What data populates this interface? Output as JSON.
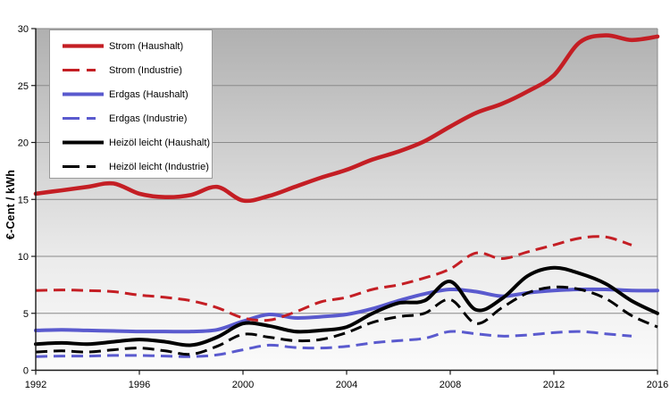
{
  "chart_data": {
    "type": "line",
    "title": "",
    "xlabel": "",
    "ylabel": "€-Cent / kWh",
    "xlim": [
      1992,
      2016
    ],
    "ylim": [
      0,
      30
    ],
    "xticks": [
      1992,
      1996,
      2000,
      2004,
      2008,
      2012,
      2016
    ],
    "yticks": [
      0,
      5,
      10,
      15,
      20,
      25,
      30
    ],
    "grid": "horizontal",
    "legend_position": "upper-left",
    "gridline_color": "#8a8a8a",
    "axis_color": "#1a1a1a",
    "background_gradient": [
      "#b0b0b0",
      "#cdcdcd",
      "#ebebeb",
      "#fbfbfb"
    ],
    "series": [
      {
        "name": "Strom (Haushalt)",
        "color": "#c41e24",
        "style": "solid",
        "width": 4.6,
        "start_year": 1992,
        "values": [
          15.5,
          15.8,
          16.1,
          16.4,
          15.5,
          15.2,
          15.4,
          16.1,
          14.9,
          15.3,
          16.1,
          16.9,
          17.6,
          18.5,
          19.2,
          20.1,
          21.4,
          22.6,
          23.4,
          24.5,
          25.9,
          28.8,
          29.4,
          29.0,
          29.3
        ]
      },
      {
        "name": "Strom (Industrie)",
        "color": "#c41e24",
        "style": "dashed",
        "width": 3,
        "start_year": 1992,
        "values": [
          7.0,
          7.05,
          7.0,
          6.9,
          6.6,
          6.4,
          6.1,
          5.5,
          4.6,
          4.4,
          5.1,
          6.0,
          6.4,
          7.1,
          7.5,
          8.1,
          8.9,
          10.3,
          9.8,
          10.4,
          11.0,
          11.6,
          11.7,
          11.0
        ]
      },
      {
        "name": "Erdgas (Haushalt)",
        "color": "#5a5ace",
        "style": "solid",
        "width": 4,
        "start_year": 1992,
        "values": [
          3.5,
          3.55,
          3.5,
          3.45,
          3.4,
          3.4,
          3.4,
          3.55,
          4.3,
          4.9,
          4.6,
          4.7,
          4.9,
          5.4,
          6.1,
          6.7,
          7.1,
          6.9,
          6.5,
          6.8,
          7.0,
          7.1,
          7.1,
          7.0,
          7.0
        ]
      },
      {
        "name": "Erdgas (Industrie)",
        "color": "#5a5ace",
        "style": "dashed",
        "width": 3,
        "start_year": 1992,
        "values": [
          1.2,
          1.25,
          1.25,
          1.3,
          1.3,
          1.25,
          1.2,
          1.35,
          1.8,
          2.2,
          2.0,
          1.95,
          2.1,
          2.4,
          2.6,
          2.8,
          3.4,
          3.2,
          3.0,
          3.1,
          3.3,
          3.4,
          3.2,
          3.0
        ]
      },
      {
        "name": "Heizöl leicht (Haushalt)",
        "color": "#000000",
        "style": "solid",
        "width": 4,
        "start_year": 1992,
        "values": [
          2.3,
          2.4,
          2.3,
          2.5,
          2.7,
          2.5,
          2.2,
          2.9,
          4.1,
          3.9,
          3.4,
          3.5,
          3.8,
          5.0,
          5.9,
          6.1,
          7.8,
          5.3,
          6.3,
          8.3,
          9.0,
          8.5,
          7.6,
          6.1,
          5.0
        ]
      },
      {
        "name": "Heizöl leicht (Industrie)",
        "color": "#000000",
        "style": "dashed",
        "width": 3,
        "start_year": 1992,
        "values": [
          1.6,
          1.7,
          1.6,
          1.8,
          1.95,
          1.7,
          1.4,
          2.1,
          3.15,
          2.9,
          2.6,
          2.7,
          3.3,
          4.2,
          4.7,
          5.0,
          6.2,
          4.1,
          5.5,
          6.8,
          7.3,
          7.1,
          6.3,
          4.8,
          3.8
        ]
      }
    ]
  }
}
